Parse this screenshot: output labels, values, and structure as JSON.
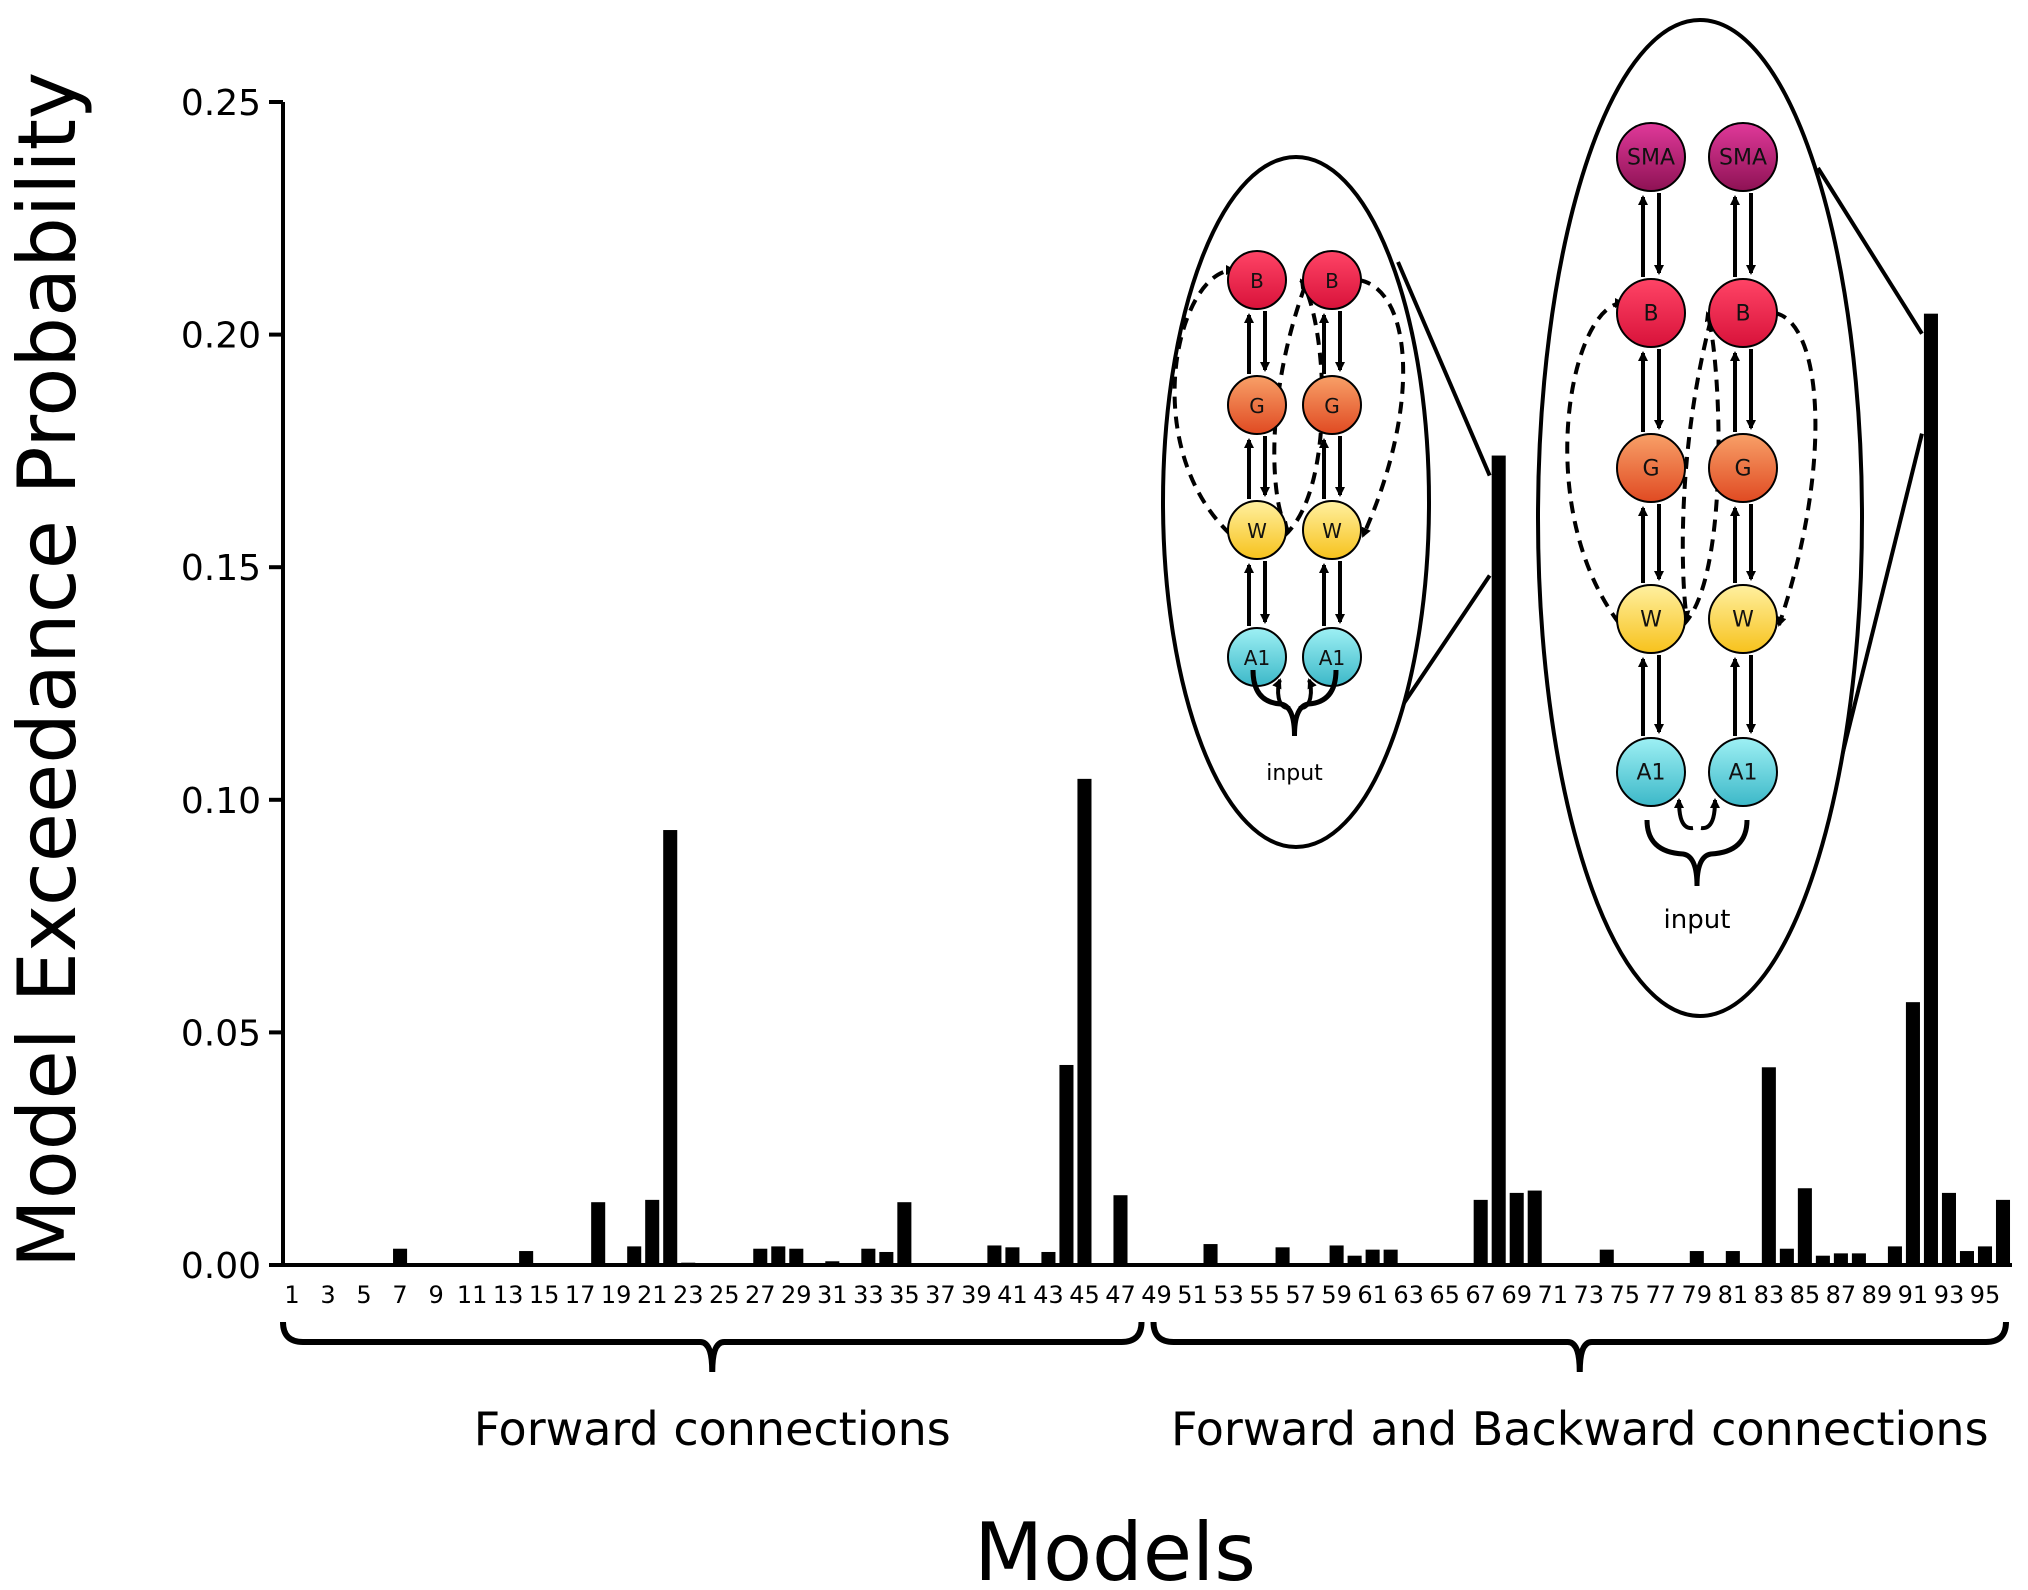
{
  "chart_data": {
    "type": "bar",
    "title": "",
    "xlabel": "Models",
    "ylabel": "Model Exceedance Probability",
    "ylim": [
      0,
      0.25
    ],
    "yticks": [
      "0.00",
      "0.05",
      "0.10",
      "0.15",
      "0.20",
      "0.25"
    ],
    "grid": false,
    "bar_color": "#000000",
    "groups": [
      {
        "label": "Forward connections",
        "from": 1,
        "to": 48
      },
      {
        "label": "Forward and Backward connections",
        "from": 49,
        "to": 96
      }
    ],
    "x": [
      1,
      2,
      3,
      4,
      5,
      6,
      7,
      8,
      9,
      10,
      11,
      12,
      13,
      14,
      15,
      16,
      17,
      18,
      19,
      20,
      21,
      22,
      23,
      24,
      25,
      26,
      27,
      28,
      29,
      30,
      31,
      32,
      33,
      34,
      35,
      36,
      37,
      38,
      39,
      40,
      41,
      42,
      43,
      44,
      45,
      46,
      47,
      48,
      49,
      50,
      51,
      52,
      53,
      54,
      55,
      56,
      57,
      58,
      59,
      60,
      61,
      62,
      63,
      64,
      65,
      66,
      67,
      68,
      69,
      70,
      71,
      72,
      73,
      74,
      75,
      76,
      77,
      78,
      79,
      80,
      81,
      82,
      83,
      84,
      85,
      86,
      87,
      88,
      89,
      90,
      91,
      92,
      93,
      94,
      95,
      96
    ],
    "xtick_labels": [
      "1",
      "3",
      "5",
      "7",
      "9",
      "11",
      "13",
      "15",
      "17",
      "19",
      "21",
      "23",
      "25",
      "27",
      "29",
      "31",
      "33",
      "35",
      "37",
      "39",
      "41",
      "43",
      "45",
      "47",
      "49",
      "51",
      "53",
      "55",
      "57",
      "59",
      "61",
      "63",
      "65",
      "67",
      "69",
      "71",
      "73",
      "75",
      "77",
      "79",
      "81",
      "83",
      "85",
      "87",
      "89",
      "91",
      "93",
      "95"
    ],
    "values": [
      0,
      0,
      0,
      0,
      0,
      0,
      0.0035,
      0,
      0,
      0,
      0,
      0,
      0,
      0.003,
      0,
      0,
      0,
      0.0135,
      0,
      0.004,
      0.014,
      0.0935,
      0.0005,
      0,
      0,
      0,
      0.0035,
      0.004,
      0.0035,
      0,
      0.0008,
      0,
      0.0035,
      0.0028,
      0.0135,
      0,
      0,
      0,
      0,
      0.0042,
      0.0038,
      0,
      0.0028,
      0.043,
      0.1045,
      0,
      0.015,
      0,
      0,
      0,
      0,
      0.0045,
      0,
      0,
      0,
      0.0038,
      0,
      0,
      0.0042,
      0.002,
      0.0033,
      0.0033,
      0,
      0,
      0,
      0,
      0.014,
      0.174,
      0.0155,
      0.016,
      0,
      0,
      0,
      0.0033,
      0,
      0,
      0,
      0,
      0.003,
      0,
      0.003,
      0,
      0.0425,
      0.0035,
      0.0165,
      0.002,
      0.0025,
      0.0025,
      0,
      0.004,
      0.0565,
      0.2045,
      0.0155,
      0.003,
      0.004,
      0.014
    ],
    "annotations": [
      {
        "target_model": 68,
        "nodes": [
          "B",
          "B",
          "G",
          "G",
          "W",
          "W",
          "A1",
          "A1"
        ],
        "input_label": "input"
      },
      {
        "target_model": 92,
        "nodes": [
          "SMA",
          "SMA",
          "B",
          "B",
          "G",
          "G",
          "W",
          "W",
          "A1",
          "A1"
        ],
        "input_label": "input"
      }
    ],
    "node_colors": {
      "SMA": [
        "#e0399a",
        "#8e1254"
      ],
      "B": [
        "#ff4466",
        "#d8123a"
      ],
      "G": [
        "#f8a068",
        "#e04a22"
      ],
      "W": [
        "#fff0a0",
        "#f7c21c"
      ],
      "A1": [
        "#9ef0f4",
        "#3cb8c8"
      ]
    }
  }
}
